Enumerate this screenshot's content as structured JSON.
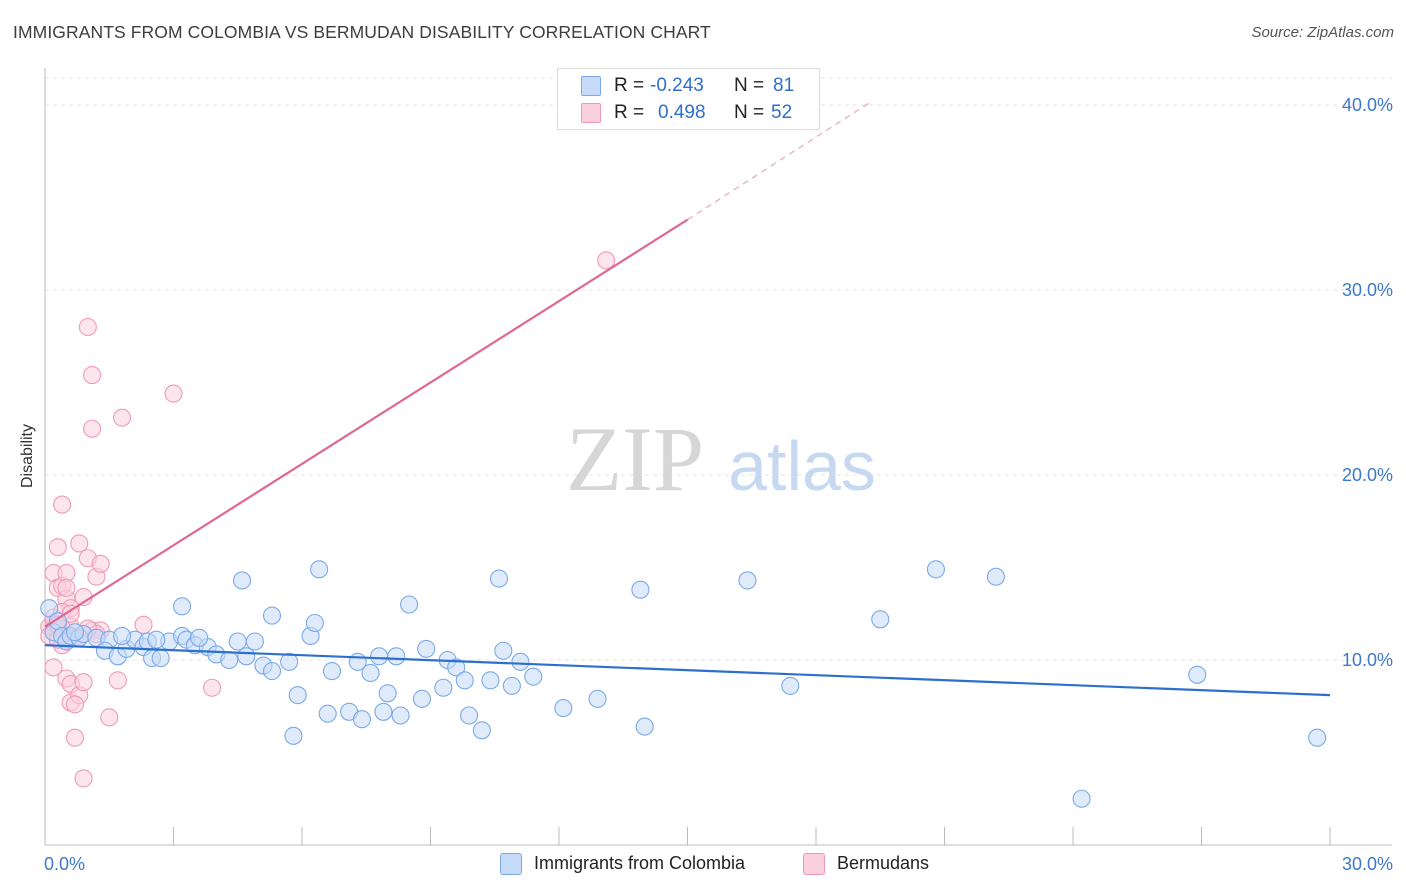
{
  "title": "IMMIGRANTS FROM COLOMBIA VS BERMUDAN DISABILITY CORRELATION CHART",
  "source": "Source: ZipAtlas.com",
  "watermark": {
    "zip": "ZIP",
    "atlas": "atlas"
  },
  "legend": {
    "r_label": "R =",
    "n_label": "N =",
    "series": [
      {
        "name": "Immigrants from Colombia",
        "r": "-0.243",
        "n": "81",
        "color": "#7aaae8",
        "fill": "#c5dbf7",
        "line": "#2d6fce",
        "text_color": "#2d6fce"
      },
      {
        "name": "Bermudans",
        "r": "0.498",
        "n": "52",
        "color": "#f09ab6",
        "fill": "#fad0de",
        "line": "#e06890",
        "text_color": "#2d6fce"
      }
    ]
  },
  "chart_data": {
    "type": "scatter",
    "title": "IMMIGRANTS FROM COLOMBIA VS BERMUDAN DISABILITY CORRELATION CHART",
    "xlabel": "",
    "ylabel": "Disability",
    "xlim": [
      0,
      30
    ],
    "ylim": [
      0,
      42
    ],
    "x_tick_labels": [
      "0.0%",
      "30.0%"
    ],
    "y_ticks": [
      10,
      20,
      30,
      40
    ],
    "y_tick_labels": [
      "10.0%",
      "20.0%",
      "30.0%",
      "40.0%"
    ],
    "grid": true,
    "legend_position": "top-center",
    "series": [
      {
        "name": "Immigrants from Colombia",
        "trend": {
          "x0": 0,
          "y0": 10.8,
          "x1": 30,
          "y1": 8.1
        },
        "points": [
          [
            0.1,
            12.8
          ],
          [
            0.2,
            11.5
          ],
          [
            0.3,
            12.1
          ],
          [
            0.4,
            11.3
          ],
          [
            0.5,
            11.0
          ],
          [
            0.6,
            11.3
          ],
          [
            0.8,
            11.2
          ],
          [
            0.9,
            11.4
          ],
          [
            1.2,
            11.2
          ],
          [
            1.5,
            11.1
          ],
          [
            1.4,
            10.5
          ],
          [
            1.7,
            10.2
          ],
          [
            1.9,
            10.6
          ],
          [
            2.1,
            11.1
          ],
          [
            2.3,
            10.7
          ],
          [
            2.5,
            10.1
          ],
          [
            2.7,
            10.1
          ],
          [
            2.9,
            11.0
          ],
          [
            3.2,
            11.3
          ],
          [
            3.3,
            11.1
          ],
          [
            3.5,
            10.8
          ],
          [
            3.8,
            10.7
          ],
          [
            4.0,
            10.3
          ],
          [
            4.3,
            10.0
          ],
          [
            4.5,
            11.0
          ],
          [
            4.7,
            10.2
          ],
          [
            4.9,
            11.0
          ],
          [
            5.1,
            9.7
          ],
          [
            5.3,
            9.4
          ],
          [
            5.7,
            9.9
          ],
          [
            5.8,
            5.9
          ],
          [
            5.9,
            8.1
          ],
          [
            6.2,
            11.3
          ],
          [
            6.3,
            12.0
          ],
          [
            6.4,
            14.9
          ],
          [
            6.6,
            7.1
          ],
          [
            6.7,
            9.4
          ],
          [
            7.1,
            7.2
          ],
          [
            7.3,
            9.9
          ],
          [
            7.4,
            6.8
          ],
          [
            7.6,
            9.3
          ],
          [
            7.8,
            10.2
          ],
          [
            7.9,
            7.2
          ],
          [
            8.0,
            8.2
          ],
          [
            8.2,
            10.2
          ],
          [
            8.3,
            7.0
          ],
          [
            8.5,
            13.0
          ],
          [
            8.8,
            7.9
          ],
          [
            8.9,
            10.6
          ],
          [
            9.3,
            8.5
          ],
          [
            9.4,
            10.0
          ],
          [
            9.6,
            9.6
          ],
          [
            9.8,
            8.9
          ],
          [
            9.9,
            7.0
          ],
          [
            10.2,
            6.2
          ],
          [
            10.4,
            8.9
          ],
          [
            10.6,
            14.4
          ],
          [
            10.7,
            10.5
          ],
          [
            10.9,
            8.6
          ],
          [
            11.1,
            9.9
          ],
          [
            11.4,
            9.1
          ],
          [
            12.1,
            7.4
          ],
          [
            12.9,
            7.9
          ],
          [
            13.9,
            13.8
          ],
          [
            14.0,
            6.4
          ],
          [
            16.4,
            14.3
          ],
          [
            17.4,
            8.6
          ],
          [
            19.5,
            12.2
          ],
          [
            20.8,
            14.9
          ],
          [
            22.2,
            14.5
          ],
          [
            24.2,
            2.5
          ],
          [
            26.9,
            9.2
          ],
          [
            29.7,
            5.8
          ],
          [
            3.2,
            12.9
          ],
          [
            2.4,
            11.0
          ],
          [
            3.6,
            11.2
          ],
          [
            4.6,
            14.3
          ],
          [
            5.3,
            12.4
          ],
          [
            1.8,
            11.3
          ],
          [
            0.7,
            11.5
          ],
          [
            2.6,
            11.1
          ]
        ]
      },
      {
        "name": "Bermudans",
        "trend": {
          "x0": 0,
          "y0": 11.8,
          "x1": 15,
          "y1": 33.8,
          "dashed_to_x": 19.3,
          "dashed_to_y": 40.2
        },
        "points": [
          [
            0.1,
            11.8
          ],
          [
            0.2,
            12.0
          ],
          [
            0.2,
            14.7
          ],
          [
            0.3,
            13.9
          ],
          [
            0.3,
            16.1
          ],
          [
            0.4,
            14.0
          ],
          [
            0.4,
            10.8
          ],
          [
            0.5,
            13.3
          ],
          [
            0.5,
            14.7
          ],
          [
            0.5,
            13.9
          ],
          [
            0.6,
            12.8
          ],
          [
            0.6,
            11.8
          ],
          [
            0.7,
            11.2
          ],
          [
            0.8,
            16.3
          ],
          [
            0.9,
            13.4
          ],
          [
            1.0,
            15.5
          ],
          [
            1.1,
            11.6
          ],
          [
            1.2,
            14.5
          ],
          [
            1.3,
            15.2
          ],
          [
            1.3,
            11.6
          ],
          [
            1.2,
            11.4
          ],
          [
            0.4,
            18.4
          ],
          [
            0.5,
            11.1
          ],
          [
            0.5,
            9.0
          ],
          [
            0.6,
            8.7
          ],
          [
            0.6,
            7.7
          ],
          [
            0.7,
            5.8
          ],
          [
            0.8,
            8.1
          ],
          [
            0.9,
            3.6
          ],
          [
            1.0,
            28.0
          ],
          [
            1.1,
            25.4
          ],
          [
            1.1,
            22.5
          ],
          [
            1.5,
            6.9
          ],
          [
            1.7,
            8.9
          ],
          [
            1.8,
            23.1
          ],
          [
            2.3,
            11.9
          ],
          [
            3.0,
            24.4
          ],
          [
            3.9,
            8.5
          ],
          [
            13.1,
            31.6
          ],
          [
            0.2,
            12.3
          ],
          [
            0.3,
            11.4
          ],
          [
            0.4,
            11.7
          ],
          [
            0.1,
            11.3
          ],
          [
            0.2,
            9.6
          ],
          [
            0.3,
            11.1
          ],
          [
            0.4,
            12.6
          ],
          [
            0.8,
            11.2
          ],
          [
            0.9,
            8.8
          ],
          [
            0.7,
            7.6
          ],
          [
            1.0,
            11.7
          ],
          [
            0.6,
            12.5
          ],
          [
            0.3,
            11.9
          ]
        ]
      }
    ]
  }
}
